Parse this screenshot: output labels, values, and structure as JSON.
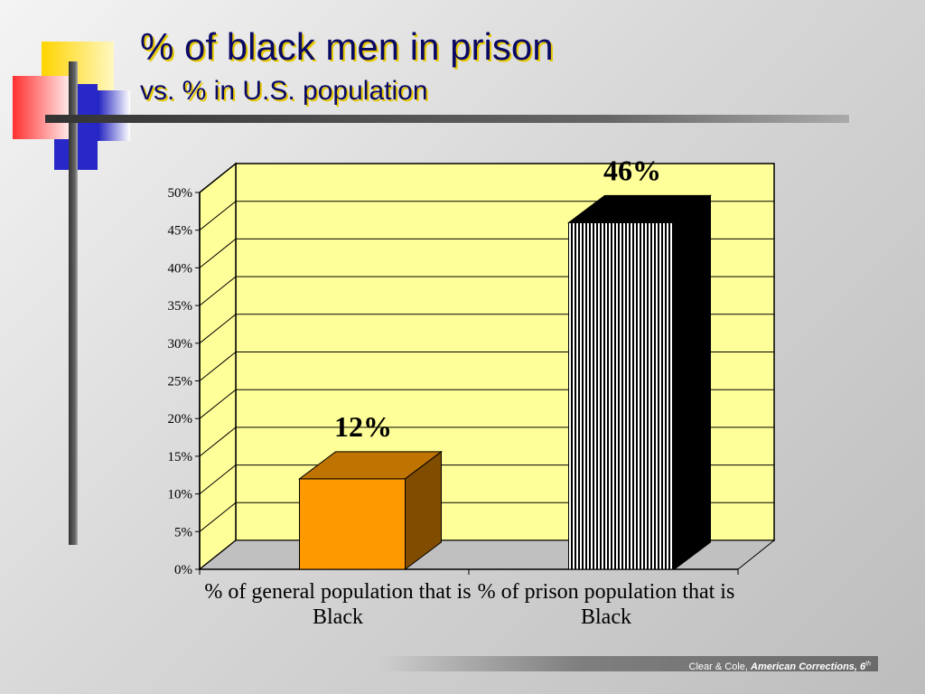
{
  "chart_data": {
    "type": "bar3d",
    "title": "% of black men in prison",
    "subtitle": "vs. % in U.S. population",
    "categories": [
      "% of general population that is Black",
      "% of prison population that is Black"
    ],
    "values": [
      12,
      46
    ],
    "value_labels": [
      "12%",
      "46%"
    ],
    "colors": [
      "#ff9900",
      "#000000"
    ],
    "ylim": [
      0,
      50
    ],
    "yticks": [
      {
        "value": 0,
        "label": "0%"
      },
      {
        "value": 5,
        "label": "5%"
      },
      {
        "value": 10,
        "label": "10%"
      },
      {
        "value": 15,
        "label": "15%"
      },
      {
        "value": 20,
        "label": "20%"
      },
      {
        "value": 25,
        "label": "25%"
      },
      {
        "value": 30,
        "label": "30%"
      },
      {
        "value": 35,
        "label": "35%"
      },
      {
        "value": 40,
        "label": "40%"
      },
      {
        "value": 45,
        "label": "45%"
      },
      {
        "value": 50,
        "label": "50%"
      }
    ],
    "grid": true
  },
  "footer": {
    "authors": "Clear & Cole,",
    "book": "American Corrections, 6",
    "sup": "th"
  }
}
